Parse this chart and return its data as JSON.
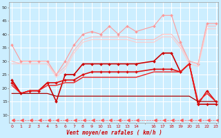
{
  "background_color": "#cceeff",
  "grid_color": "#ffffff",
  "xlabel": "Vent moyen/en rafales ( km/h )",
  "xticks": [
    0,
    1,
    2,
    3,
    4,
    5,
    6,
    7,
    8,
    9,
    10,
    11,
    12,
    13,
    14,
    15,
    16,
    17,
    18,
    19,
    20,
    21,
    22,
    23
  ],
  "xtick_labels": [
    "0",
    "1",
    "2",
    "3",
    "4",
    "5",
    "6",
    "7",
    "8",
    "9",
    "10",
    "11",
    "12",
    "13",
    "14",
    "",
    "16",
    "17",
    "18",
    "19",
    "20",
    "21",
    "22",
    "23"
  ],
  "yticks": [
    10,
    15,
    20,
    25,
    30,
    35,
    40,
    45,
    50
  ],
  "ylim": [
    7,
    52
  ],
  "xlim": [
    -0.3,
    23.3
  ],
  "series": [
    {
      "x": [
        0,
        1,
        2,
        3,
        4,
        5,
        6,
        7,
        8,
        9,
        10,
        11,
        12,
        13,
        14,
        16,
        17,
        18,
        19,
        20,
        21,
        22,
        23
      ],
      "y": [
        36,
        30,
        30,
        30,
        30,
        25,
        30,
        36,
        40,
        41,
        40,
        43,
        40,
        43,
        41,
        43,
        47,
        47,
        37,
        30,
        29,
        44,
        44
      ],
      "color": "#ff9999",
      "lw": 0.8,
      "marker": "D",
      "ms": 2.0,
      "ls": "-"
    },
    {
      "x": [
        0,
        1,
        2,
        3,
        4,
        5,
        6,
        7,
        8,
        9,
        10,
        11,
        12,
        13,
        14,
        16,
        17,
        18,
        19,
        20,
        21,
        22,
        23
      ],
      "y": [
        30,
        29,
        29,
        29,
        29,
        25,
        28,
        34,
        38,
        39,
        39,
        39,
        39,
        39,
        38,
        38,
        40,
        40,
        36,
        30,
        29,
        43,
        43
      ],
      "color": "#ffbbbb",
      "lw": 0.8,
      "marker": null,
      "ms": 0,
      "ls": "-"
    },
    {
      "x": [
        0,
        1,
        2,
        3,
        4,
        5,
        6,
        7,
        8,
        9,
        10,
        11,
        12,
        13,
        14,
        16,
        17,
        18,
        19,
        20,
        21,
        22,
        23
      ],
      "y": [
        29,
        29,
        29,
        29,
        29,
        24,
        27,
        33,
        37,
        38,
        38,
        38,
        38,
        38,
        37,
        37,
        39,
        39,
        35,
        29,
        28,
        42,
        42
      ],
      "color": "#ffcccc",
      "lw": 0.8,
      "marker": null,
      "ms": 0,
      "ls": "-"
    },
    {
      "x": [
        0,
        1,
        2,
        3,
        4,
        5,
        6,
        7,
        8,
        9,
        10,
        11,
        12,
        13,
        14,
        16,
        17,
        18,
        19,
        20,
        21,
        22,
        23
      ],
      "y": [
        23,
        18,
        19,
        19,
        22,
        15,
        25,
        25,
        29,
        29,
        29,
        29,
        29,
        29,
        29,
        30,
        33,
        33,
        26,
        29,
        14,
        14,
        14
      ],
      "color": "#cc0000",
      "lw": 1.2,
      "marker": "D",
      "ms": 2.0,
      "ls": "-"
    },
    {
      "x": [
        0,
        1,
        2,
        3,
        4,
        5,
        6,
        7,
        8,
        9,
        10,
        11,
        12,
        13,
        14,
        16,
        17,
        18,
        19,
        20,
        21,
        22,
        23
      ],
      "y": [
        22,
        18,
        19,
        19,
        22,
        22,
        23,
        23,
        25,
        26,
        26,
        26,
        26,
        26,
        26,
        27,
        27,
        27,
        26,
        29,
        14,
        19,
        15
      ],
      "color": "#dd1111",
      "lw": 1.2,
      "marker": "D",
      "ms": 2.0,
      "ls": "-"
    },
    {
      "x": [
        0,
        1,
        2,
        3,
        4,
        5,
        6,
        7,
        8,
        9,
        10,
        11,
        12,
        13,
        14,
        16,
        17,
        18,
        19,
        20,
        21,
        22,
        23
      ],
      "y": [
        21,
        18,
        19,
        19,
        21,
        21,
        22,
        22,
        24,
        24,
        24,
        24,
        24,
        24,
        24,
        26,
        26,
        26,
        26,
        29,
        15,
        18,
        15
      ],
      "color": "#ee2222",
      "lw": 1.0,
      "marker": null,
      "ms": 0,
      "ls": "-"
    },
    {
      "x": [
        0,
        1,
        2,
        3,
        4,
        5,
        6,
        7,
        8,
        9,
        10,
        11,
        12,
        13,
        14,
        16,
        17,
        18,
        19,
        20,
        21,
        22,
        23
      ],
      "y": [
        18,
        18,
        18,
        18,
        18,
        17,
        17,
        17,
        17,
        17,
        17,
        17,
        17,
        17,
        17,
        17,
        17,
        17,
        17,
        17,
        15,
        15,
        15
      ],
      "color": "#aa0000",
      "lw": 0.9,
      "marker": null,
      "ms": 0,
      "ls": "-"
    },
    {
      "x": [
        0,
        1,
        2,
        3,
        4,
        5,
        6,
        7,
        8,
        9,
        10,
        11,
        12,
        13,
        14,
        16,
        17,
        18,
        19,
        20,
        21,
        22,
        23
      ],
      "y": [
        8,
        8,
        8,
        8,
        8,
        8,
        8,
        8,
        8,
        8,
        8,
        8,
        8,
        8,
        8,
        8,
        8,
        8,
        8,
        8,
        8,
        8,
        8
      ],
      "color": "#ff5555",
      "lw": 0.5,
      "marker": 4,
      "ms": 3.5,
      "ls": "--"
    }
  ]
}
